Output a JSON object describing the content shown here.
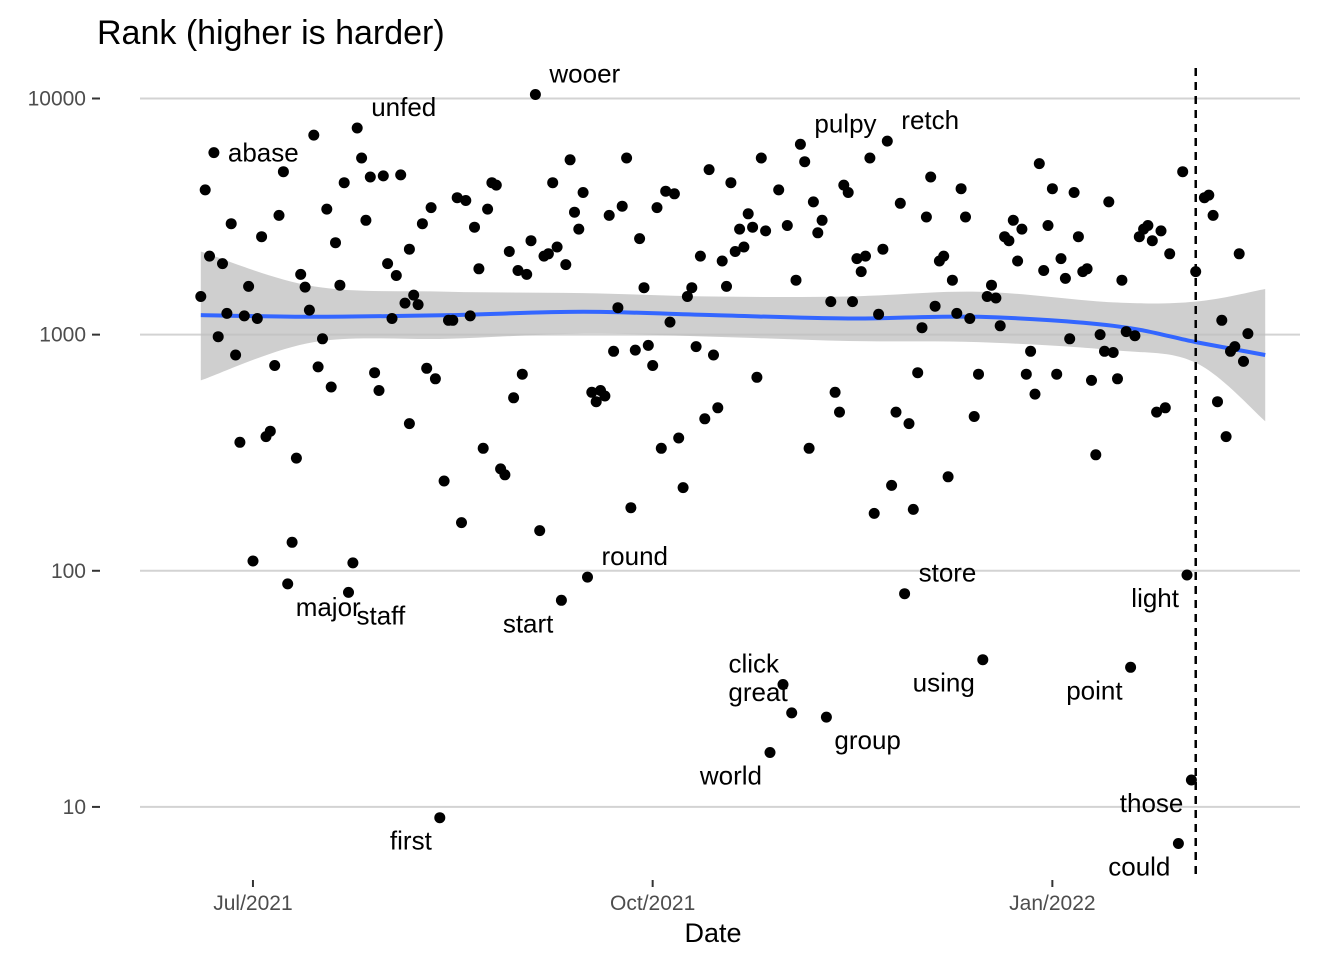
{
  "chart_data": {
    "type": "scatter",
    "title": "Rank (higher is harder)",
    "xlabel": "Date",
    "ylabel": "",
    "y_scale": "log10",
    "ylim": [
      5,
      14000
    ],
    "xlim": [
      "2021-06-05",
      "2022-02-27"
    ],
    "y_ticks": [
      10,
      100,
      1000,
      10000
    ],
    "y_tick_labels": [
      "10",
      "100",
      "1000",
      "10000"
    ],
    "x_ticks": [
      "2021-07-01",
      "2021-10-01",
      "2022-01-01"
    ],
    "x_tick_labels": [
      "Jul/2021",
      "Oct/2021",
      "Jan/2022"
    ],
    "grid": true,
    "reference_line": {
      "x": "2022-02-03",
      "style": "dashed"
    },
    "smooth": {
      "points": [
        [
          "2021-06-19",
          1210
        ],
        [
          "2021-07-15",
          1190
        ],
        [
          "2021-08-15",
          1210
        ],
        [
          "2021-09-15",
          1250
        ],
        [
          "2021-10-15",
          1210
        ],
        [
          "2021-11-15",
          1170
        ],
        [
          "2021-12-15",
          1190
        ],
        [
          "2022-01-15",
          1090
        ],
        [
          "2022-02-03",
          930
        ],
        [
          "2022-02-19",
          820
        ]
      ],
      "ci_low": [
        640,
        930,
        960,
        1010,
        980,
        940,
        930,
        860,
        760,
        430
      ],
      "ci_high": [
        2250,
        1600,
        1520,
        1500,
        1450,
        1450,
        1520,
        1370,
        1380,
        1560
      ],
      "line_color": "#3366ff",
      "band_color": "#bfbfbf"
    },
    "points": [
      {
        "date": "2021-06-19",
        "rank": 1450
      },
      {
        "date": "2021-06-20",
        "rank": 4100
      },
      {
        "date": "2021-06-21",
        "rank": 2150
      },
      {
        "date": "2021-06-22",
        "rank": 5900,
        "label": "abase"
      },
      {
        "date": "2021-06-23",
        "rank": 980
      },
      {
        "date": "2021-06-24",
        "rank": 2000
      },
      {
        "date": "2021-06-25",
        "rank": 1230
      },
      {
        "date": "2021-06-26",
        "rank": 2950
      },
      {
        "date": "2021-06-27",
        "rank": 820
      },
      {
        "date": "2021-06-28",
        "rank": 350
      },
      {
        "date": "2021-06-29",
        "rank": 1200
      },
      {
        "date": "2021-06-30",
        "rank": 1600
      },
      {
        "date": "2021-07-01",
        "rank": 110
      },
      {
        "date": "2021-07-02",
        "rank": 1170
      },
      {
        "date": "2021-07-03",
        "rank": 2600
      },
      {
        "date": "2021-07-04",
        "rank": 370
      },
      {
        "date": "2021-07-05",
        "rank": 390
      },
      {
        "date": "2021-07-06",
        "rank": 740
      },
      {
        "date": "2021-07-07",
        "rank": 3200
      },
      {
        "date": "2021-07-08",
        "rank": 4900
      },
      {
        "date": "2021-07-09",
        "rank": 88,
        "label": "major"
      },
      {
        "date": "2021-07-10",
        "rank": 132
      },
      {
        "date": "2021-07-11",
        "rank": 300
      },
      {
        "date": "2021-07-12",
        "rank": 1800
      },
      {
        "date": "2021-07-13",
        "rank": 1590
      },
      {
        "date": "2021-07-14",
        "rank": 1270
      },
      {
        "date": "2021-07-15",
        "rank": 7000
      },
      {
        "date": "2021-07-16",
        "rank": 730
      },
      {
        "date": "2021-07-17",
        "rank": 960
      },
      {
        "date": "2021-07-18",
        "rank": 3400
      },
      {
        "date": "2021-07-19",
        "rank": 600
      },
      {
        "date": "2021-07-20",
        "rank": 2450
      },
      {
        "date": "2021-07-21",
        "rank": 1620
      },
      {
        "date": "2021-07-22",
        "rank": 4400
      },
      {
        "date": "2021-07-23",
        "rank": 81,
        "label": "staff"
      },
      {
        "date": "2021-07-24",
        "rank": 108
      },
      {
        "date": "2021-07-25",
        "rank": 7500,
        "label": "unfed"
      },
      {
        "date": "2021-07-26",
        "rank": 5600
      },
      {
        "date": "2021-07-27",
        "rank": 3050
      },
      {
        "date": "2021-07-28",
        "rank": 4650
      },
      {
        "date": "2021-07-29",
        "rank": 690
      },
      {
        "date": "2021-07-30",
        "rank": 580
      },
      {
        "date": "2021-07-31",
        "rank": 4700
      },
      {
        "date": "2021-08-01",
        "rank": 2000
      },
      {
        "date": "2021-08-02",
        "rank": 1170
      },
      {
        "date": "2021-08-03",
        "rank": 1780
      },
      {
        "date": "2021-08-04",
        "rank": 4750
      },
      {
        "date": "2021-08-05",
        "rank": 1360
      },
      {
        "date": "2021-08-06",
        "rank": 2300
      },
      {
        "date": "2021-08-06",
        "rank": 420
      },
      {
        "date": "2021-08-07",
        "rank": 1470
      },
      {
        "date": "2021-08-08",
        "rank": 1340
      },
      {
        "date": "2021-08-09",
        "rank": 2950
      },
      {
        "date": "2021-08-10",
        "rank": 720
      },
      {
        "date": "2021-08-11",
        "rank": 3450
      },
      {
        "date": "2021-08-12",
        "rank": 650
      },
      {
        "date": "2021-08-13",
        "rank": 9,
        "label": "first"
      },
      {
        "date": "2021-08-14",
        "rank": 240
      },
      {
        "date": "2021-08-15",
        "rank": 1150
      },
      {
        "date": "2021-08-16",
        "rank": 1150
      },
      {
        "date": "2021-08-17",
        "rank": 3800
      },
      {
        "date": "2021-08-18",
        "rank": 160
      },
      {
        "date": "2021-08-19",
        "rank": 3700
      },
      {
        "date": "2021-08-20",
        "rank": 1200
      },
      {
        "date": "2021-08-21",
        "rank": 2850
      },
      {
        "date": "2021-08-22",
        "rank": 1900
      },
      {
        "date": "2021-08-23",
        "rank": 330
      },
      {
        "date": "2021-08-24",
        "rank": 3400
      },
      {
        "date": "2021-08-25",
        "rank": 4400
      },
      {
        "date": "2021-08-26",
        "rank": 4300
      },
      {
        "date": "2021-08-27",
        "rank": 270
      },
      {
        "date": "2021-08-28",
        "rank": 255
      },
      {
        "date": "2021-08-29",
        "rank": 2250
      },
      {
        "date": "2021-08-30",
        "rank": 540
      },
      {
        "date": "2021-08-31",
        "rank": 1870
      },
      {
        "date": "2021-09-01",
        "rank": 680
      },
      {
        "date": "2021-09-02",
        "rank": 1800
      },
      {
        "date": "2021-09-03",
        "rank": 2500
      },
      {
        "date": "2021-09-04",
        "rank": 10400,
        "label": "wooer"
      },
      {
        "date": "2021-09-05",
        "rank": 148
      },
      {
        "date": "2021-09-06",
        "rank": 2150
      },
      {
        "date": "2021-09-07",
        "rank": 2200
      },
      {
        "date": "2021-09-08",
        "rank": 4400
      },
      {
        "date": "2021-09-09",
        "rank": 2350
      },
      {
        "date": "2021-09-10",
        "rank": 75,
        "label": "start"
      },
      {
        "date": "2021-09-11",
        "rank": 1980
      },
      {
        "date": "2021-09-12",
        "rank": 5500
      },
      {
        "date": "2021-09-13",
        "rank": 3300
      },
      {
        "date": "2021-09-14",
        "rank": 2800
      },
      {
        "date": "2021-09-15",
        "rank": 4000
      },
      {
        "date": "2021-09-16",
        "rank": 94,
        "label": "round"
      },
      {
        "date": "2021-09-17",
        "rank": 570
      },
      {
        "date": "2021-09-18",
        "rank": 520
      },
      {
        "date": "2021-09-19",
        "rank": 580
      },
      {
        "date": "2021-09-20",
        "rank": 550
      },
      {
        "date": "2021-09-21",
        "rank": 3200
      },
      {
        "date": "2021-09-22",
        "rank": 850
      },
      {
        "date": "2021-09-23",
        "rank": 1300
      },
      {
        "date": "2021-09-24",
        "rank": 3500
      },
      {
        "date": "2021-09-25",
        "rank": 5600
      },
      {
        "date": "2021-09-26",
        "rank": 185
      },
      {
        "date": "2021-09-27",
        "rank": 860
      },
      {
        "date": "2021-09-28",
        "rank": 2550
      },
      {
        "date": "2021-09-29",
        "rank": 1580
      },
      {
        "date": "2021-09-30",
        "rank": 900
      },
      {
        "date": "2021-10-01",
        "rank": 740
      },
      {
        "date": "2021-10-02",
        "rank": 3450
      },
      {
        "date": "2021-10-03",
        "rank": 330
      },
      {
        "date": "2021-10-04",
        "rank": 4050
      },
      {
        "date": "2021-10-05",
        "rank": 1130
      },
      {
        "date": "2021-10-06",
        "rank": 3950
      },
      {
        "date": "2021-10-07",
        "rank": 365
      },
      {
        "date": "2021-10-08",
        "rank": 225
      },
      {
        "date": "2021-10-09",
        "rank": 1450
      },
      {
        "date": "2021-10-10",
        "rank": 1580
      },
      {
        "date": "2021-10-11",
        "rank": 890
      },
      {
        "date": "2021-10-12",
        "rank": 2150
      },
      {
        "date": "2021-10-13",
        "rank": 440
      },
      {
        "date": "2021-10-14",
        "rank": 5000
      },
      {
        "date": "2021-10-15",
        "rank": 820
      },
      {
        "date": "2021-10-16",
        "rank": 490
      },
      {
        "date": "2021-10-17",
        "rank": 2050
      },
      {
        "date": "2021-10-18",
        "rank": 1600
      },
      {
        "date": "2021-10-19",
        "rank": 4400
      },
      {
        "date": "2021-10-20",
        "rank": 2250
      },
      {
        "date": "2021-10-21",
        "rank": 2800
      },
      {
        "date": "2021-10-22",
        "rank": 2350
      },
      {
        "date": "2021-10-23",
        "rank": 3250
      },
      {
        "date": "2021-10-24",
        "rank": 2850
      },
      {
        "date": "2021-10-25",
        "rank": 660
      },
      {
        "date": "2021-10-26",
        "rank": 5600
      },
      {
        "date": "2021-10-27",
        "rank": 2750
      },
      {
        "date": "2021-10-28",
        "rank": 17,
        "label": "world"
      },
      {
        "date": "2021-10-30",
        "rank": 4100
      },
      {
        "date": "2021-10-31",
        "rank": 33,
        "label": "click"
      },
      {
        "date": "2021-11-01",
        "rank": 2900
      },
      {
        "date": "2021-11-02",
        "rank": 25,
        "label": "great"
      },
      {
        "date": "2021-11-03",
        "rank": 1700
      },
      {
        "date": "2021-11-04",
        "rank": 6400,
        "label": "pulpy"
      },
      {
        "date": "2021-11-05",
        "rank": 5400
      },
      {
        "date": "2021-11-06",
        "rank": 330
      },
      {
        "date": "2021-11-07",
        "rank": 3650
      },
      {
        "date": "2021-11-08",
        "rank": 2700
      },
      {
        "date": "2021-11-09",
        "rank": 3050
      },
      {
        "date": "2021-11-10",
        "rank": 24,
        "label": "group"
      },
      {
        "date": "2021-11-11",
        "rank": 1380
      },
      {
        "date": "2021-11-12",
        "rank": 570
      },
      {
        "date": "2021-11-13",
        "rank": 470
      },
      {
        "date": "2021-11-14",
        "rank": 4300
      },
      {
        "date": "2021-11-15",
        "rank": 4000
      },
      {
        "date": "2021-11-16",
        "rank": 1380
      },
      {
        "date": "2021-11-17",
        "rank": 2100
      },
      {
        "date": "2021-11-18",
        "rank": 1850
      },
      {
        "date": "2021-11-19",
        "rank": 2150
      },
      {
        "date": "2021-11-20",
        "rank": 5600
      },
      {
        "date": "2021-11-21",
        "rank": 175
      },
      {
        "date": "2021-11-22",
        "rank": 1220
      },
      {
        "date": "2021-11-23",
        "rank": 2300
      },
      {
        "date": "2021-11-24",
        "rank": 6600,
        "label": "retch"
      },
      {
        "date": "2021-11-25",
        "rank": 230
      },
      {
        "date": "2021-11-26",
        "rank": 470
      },
      {
        "date": "2021-11-27",
        "rank": 3600
      },
      {
        "date": "2021-11-28",
        "rank": 80,
        "label": "store"
      },
      {
        "date": "2021-11-29",
        "rank": 420
      },
      {
        "date": "2021-11-30",
        "rank": 182
      },
      {
        "date": "2021-12-01",
        "rank": 690
      },
      {
        "date": "2021-12-02",
        "rank": 1070
      },
      {
        "date": "2021-12-03",
        "rank": 3150
      },
      {
        "date": "2021-12-04",
        "rank": 4650
      },
      {
        "date": "2021-12-05",
        "rank": 1320
      },
      {
        "date": "2021-12-06",
        "rank": 2050
      },
      {
        "date": "2021-12-07",
        "rank": 2150
      },
      {
        "date": "2021-12-08",
        "rank": 250
      },
      {
        "date": "2021-12-09",
        "rank": 1700
      },
      {
        "date": "2021-12-10",
        "rank": 1230
      },
      {
        "date": "2021-12-11",
        "rank": 4150
      },
      {
        "date": "2021-12-12",
        "rank": 3150
      },
      {
        "date": "2021-12-13",
        "rank": 1170
      },
      {
        "date": "2021-12-14",
        "rank": 450
      },
      {
        "date": "2021-12-15",
        "rank": 680
      },
      {
        "date": "2021-12-16",
        "rank": 42,
        "label": "using"
      },
      {
        "date": "2021-12-17",
        "rank": 1450
      },
      {
        "date": "2021-12-18",
        "rank": 1620
      },
      {
        "date": "2021-12-19",
        "rank": 1430
      },
      {
        "date": "2021-12-20",
        "rank": 1090
      },
      {
        "date": "2021-12-21",
        "rank": 2600
      },
      {
        "date": "2021-12-22",
        "rank": 2500
      },
      {
        "date": "2021-12-23",
        "rank": 3050
      },
      {
        "date": "2021-12-24",
        "rank": 2050
      },
      {
        "date": "2021-12-25",
        "rank": 2800
      },
      {
        "date": "2021-12-26",
        "rank": 680
      },
      {
        "date": "2021-12-27",
        "rank": 850
      },
      {
        "date": "2021-12-28",
        "rank": 560
      },
      {
        "date": "2021-12-29",
        "rank": 5300
      },
      {
        "date": "2021-12-30",
        "rank": 1870
      },
      {
        "date": "2021-12-31",
        "rank": 2900
      },
      {
        "date": "2022-01-01",
        "rank": 4150
      },
      {
        "date": "2022-01-02",
        "rank": 680
      },
      {
        "date": "2022-01-03",
        "rank": 2100
      },
      {
        "date": "2022-01-04",
        "rank": 1730
      },
      {
        "date": "2022-01-05",
        "rank": 960
      },
      {
        "date": "2022-01-06",
        "rank": 4000
      },
      {
        "date": "2022-01-07",
        "rank": 2600
      },
      {
        "date": "2022-01-08",
        "rank": 1850
      },
      {
        "date": "2022-01-09",
        "rank": 1900
      },
      {
        "date": "2022-01-10",
        "rank": 640
      },
      {
        "date": "2022-01-11",
        "rank": 310
      },
      {
        "date": "2022-01-12",
        "rank": 1000
      },
      {
        "date": "2022-01-13",
        "rank": 850
      },
      {
        "date": "2022-01-14",
        "rank": 3650
      },
      {
        "date": "2022-01-15",
        "rank": 840
      },
      {
        "date": "2022-01-16",
        "rank": 650
      },
      {
        "date": "2022-01-17",
        "rank": 1700
      },
      {
        "date": "2022-01-18",
        "rank": 1030
      },
      {
        "date": "2022-01-19",
        "rank": 39,
        "label": "point"
      },
      {
        "date": "2022-01-20",
        "rank": 990
      },
      {
        "date": "2022-01-21",
        "rank": 2600
      },
      {
        "date": "2022-01-22",
        "rank": 2800
      },
      {
        "date": "2022-01-23",
        "rank": 2900
      },
      {
        "date": "2022-01-24",
        "rank": 2500
      },
      {
        "date": "2022-01-25",
        "rank": 470
      },
      {
        "date": "2022-01-26",
        "rank": 2750
      },
      {
        "date": "2022-01-27",
        "rank": 490
      },
      {
        "date": "2022-01-28",
        "rank": 2200
      },
      {
        "date": "2022-01-30",
        "rank": 7,
        "label": "could"
      },
      {
        "date": "2022-01-31",
        "rank": 4900
      },
      {
        "date": "2022-02-01",
        "rank": 96,
        "label": "light"
      },
      {
        "date": "2022-02-02",
        "rank": 13,
        "label": "those"
      },
      {
        "date": "2022-02-03",
        "rank": 1850
      },
      {
        "date": "2022-02-05",
        "rank": 3800
      },
      {
        "date": "2022-02-06",
        "rank": 3900
      },
      {
        "date": "2022-02-07",
        "rank": 3200
      },
      {
        "date": "2022-02-08",
        "rank": 520
      },
      {
        "date": "2022-02-09",
        "rank": 1150
      },
      {
        "date": "2022-02-10",
        "rank": 370
      },
      {
        "date": "2022-02-11",
        "rank": 850
      },
      {
        "date": "2022-02-12",
        "rank": 890
      },
      {
        "date": "2022-02-13",
        "rank": 2200
      },
      {
        "date": "2022-02-14",
        "rank": 770
      },
      {
        "date": "2022-02-15",
        "rank": 1010
      }
    ],
    "label_positions": {
      "abase": "right",
      "major": "below-right",
      "staff": "below-right",
      "unfed": "above-right",
      "first": "below-left",
      "wooer": "above-right",
      "start": "below-left",
      "round": "above-right",
      "world": "below-left",
      "click": "above-left",
      "great": "above-left",
      "group": "below-right",
      "pulpy": "above-right",
      "retch": "above-right",
      "store": "above-right",
      "using": "below-left",
      "point": "below-left",
      "could": "below-left",
      "light": "below-left",
      "those": "below-left"
    }
  }
}
